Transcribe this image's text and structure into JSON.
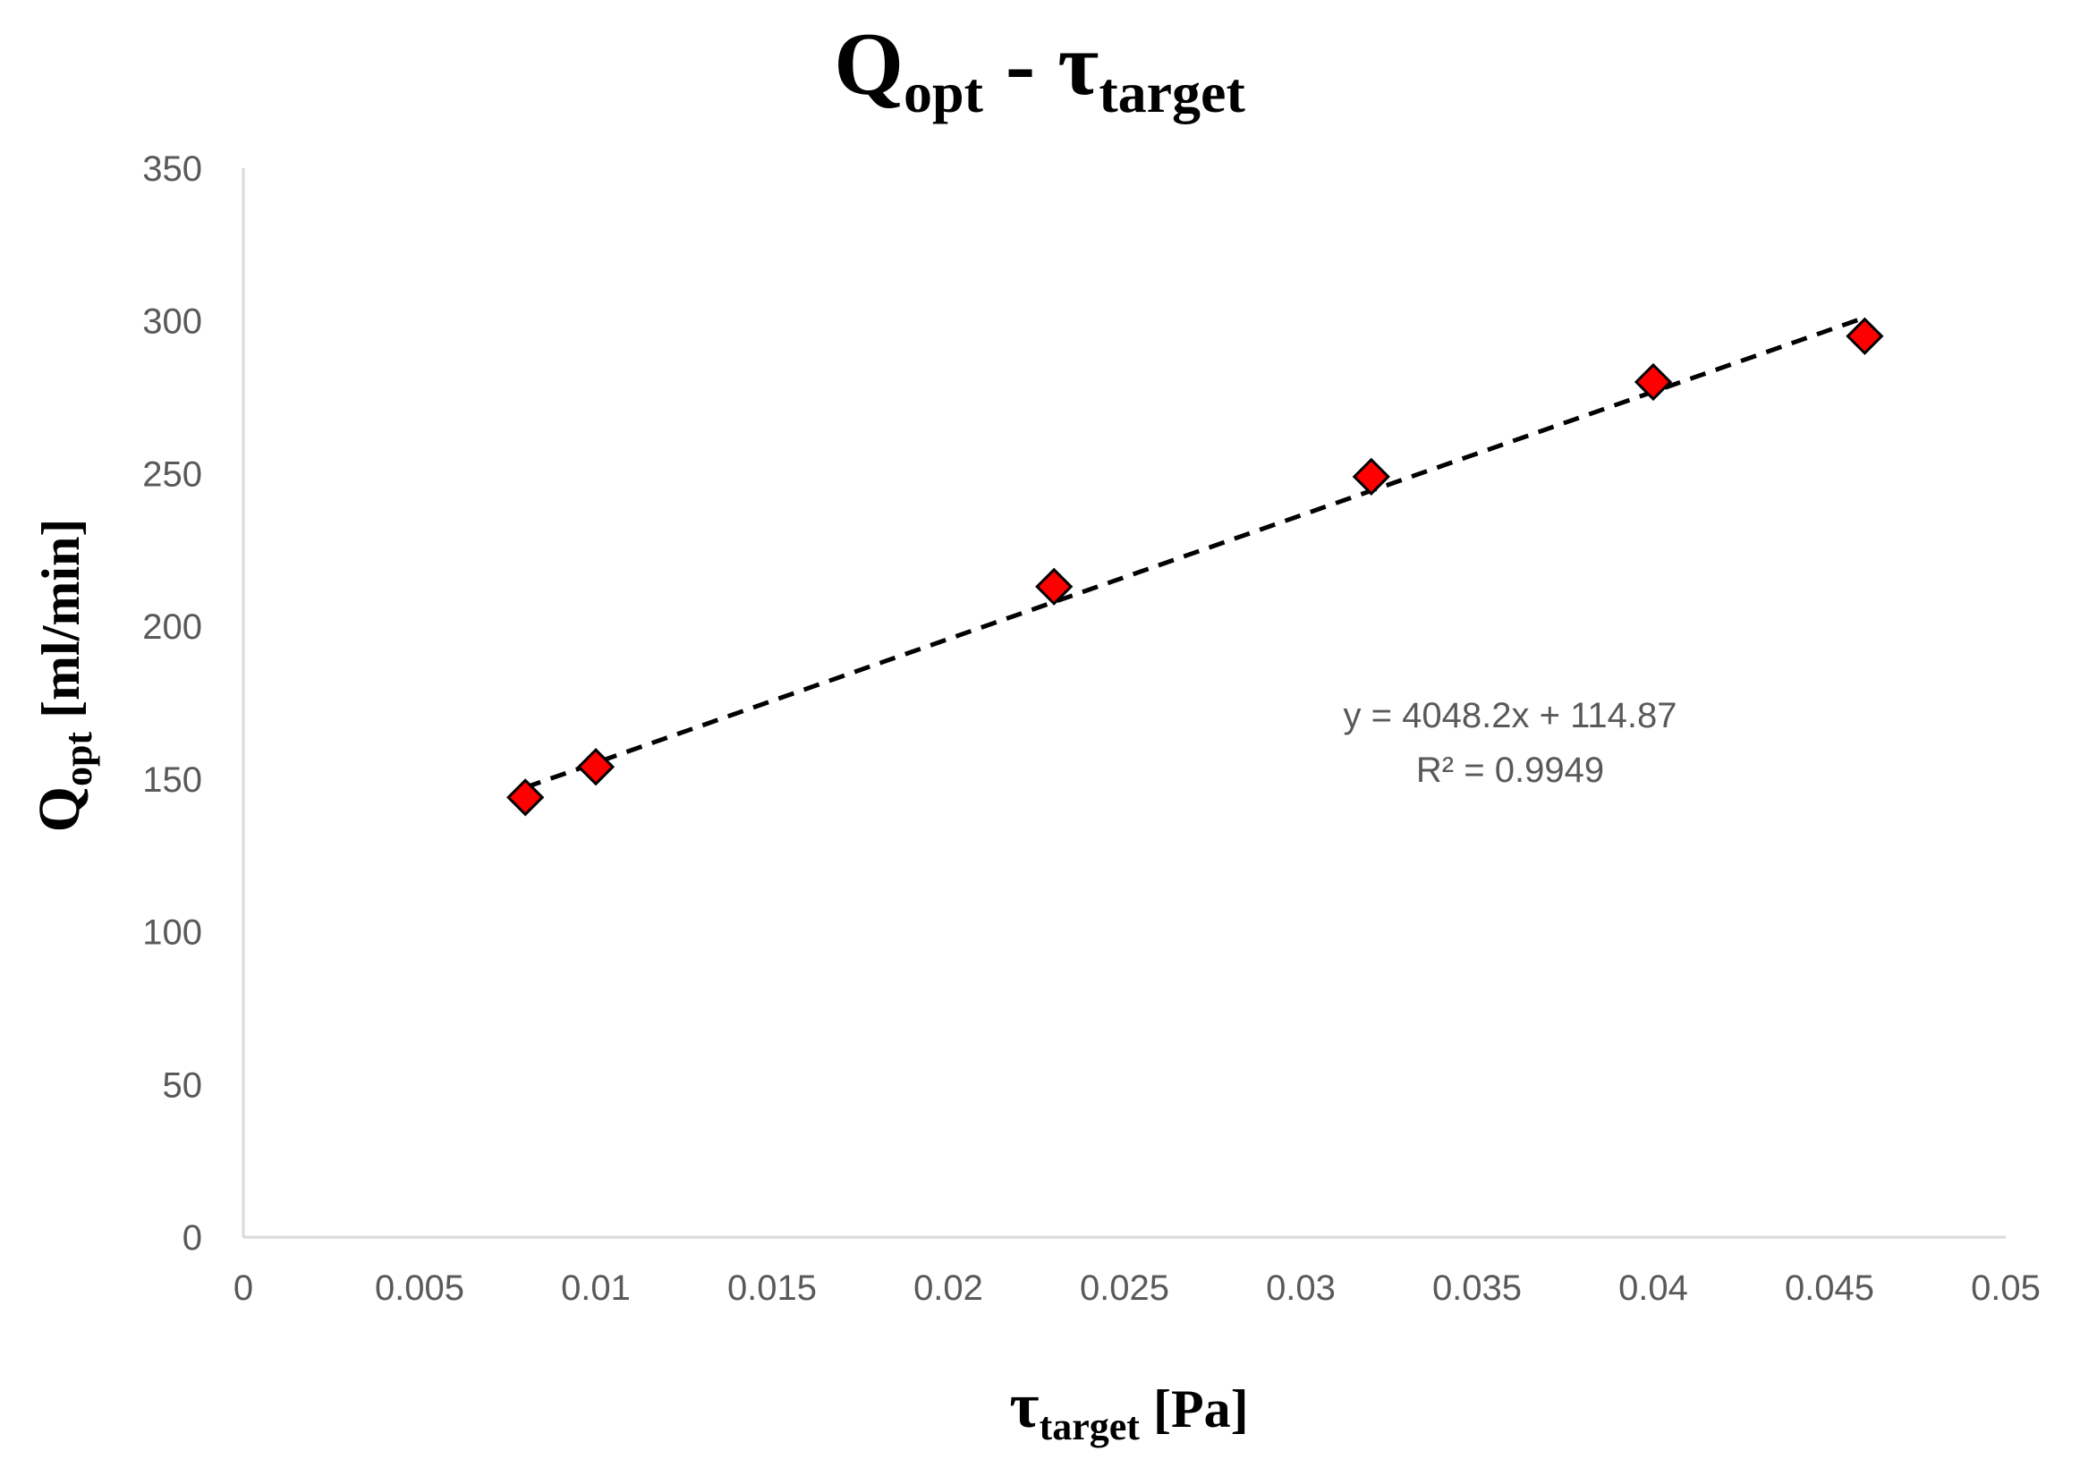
{
  "colors": {
    "marker_fill": "#ff0000",
    "marker_stroke": "#000000",
    "trendline": "#000000",
    "axis_line": "#d9d9d9",
    "tick_text": "#595959",
    "title_text": "#000000"
  },
  "chart_data": {
    "type": "scatter",
    "title": {
      "main": "Q",
      "main_sub": "opt",
      "separator": " - ",
      "second": "τ",
      "second_sub": "target"
    },
    "xlabel": {
      "main": "τ",
      "sub": "target",
      "unit": " [Pa]"
    },
    "ylabel": {
      "main": "Q",
      "sub": "opt",
      "unit": " [ml/min]"
    },
    "xlim": [
      0,
      0.05
    ],
    "ylim": [
      0,
      350
    ],
    "x_ticks": [
      0,
      0.005,
      0.01,
      0.015,
      0.02,
      0.025,
      0.03,
      0.035,
      0.04,
      0.045,
      0.05
    ],
    "x_tick_labels": [
      "0",
      "0.005",
      "0.01",
      "0.015",
      "0.02",
      "0.025",
      "0.03",
      "0.035",
      "0.04",
      "0.045",
      "0.05"
    ],
    "y_ticks": [
      0,
      50,
      100,
      150,
      200,
      250,
      300,
      350
    ],
    "y_tick_labels": [
      "0",
      "50",
      "100",
      "150",
      "200",
      "250",
      "300",
      "350"
    ],
    "grid": false,
    "legend": "none",
    "marker": "diamond",
    "series": [
      {
        "x": [
          0.008,
          0.01,
          0.023,
          0.032,
          0.04,
          0.046
        ],
        "y": [
          144,
          154,
          213,
          249,
          280,
          295
        ]
      }
    ],
    "trendline": {
      "type": "linear",
      "slope": 4048.2,
      "intercept": 114.87,
      "x_range": [
        0.008,
        0.046
      ],
      "style": "dashed",
      "equation_label": "y = 4048.2x + 114.87",
      "r2_label": "R² = 0.9949"
    }
  }
}
